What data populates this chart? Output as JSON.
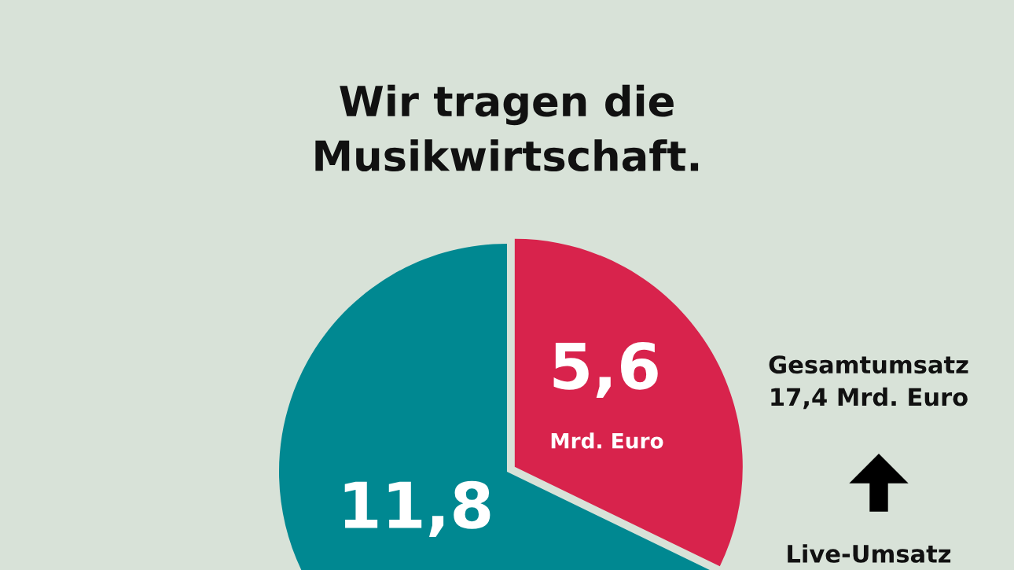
{
  "chart_data": {
    "type": "pie",
    "title": "Wir tragen die\nMusikwirtschaft.",
    "categories": [
      null,
      null
    ],
    "values": [
      5.6,
      11.8
    ],
    "colors": [
      "#d8234c",
      "#008891"
    ],
    "value_labels": [
      "5,6",
      "11,8"
    ],
    "annotations": [
      "Mrd. Euro",
      "Gesamtumsatz\n17,4 Mrd. Euro",
      "Live-Umsatz"
    ]
  }
}
